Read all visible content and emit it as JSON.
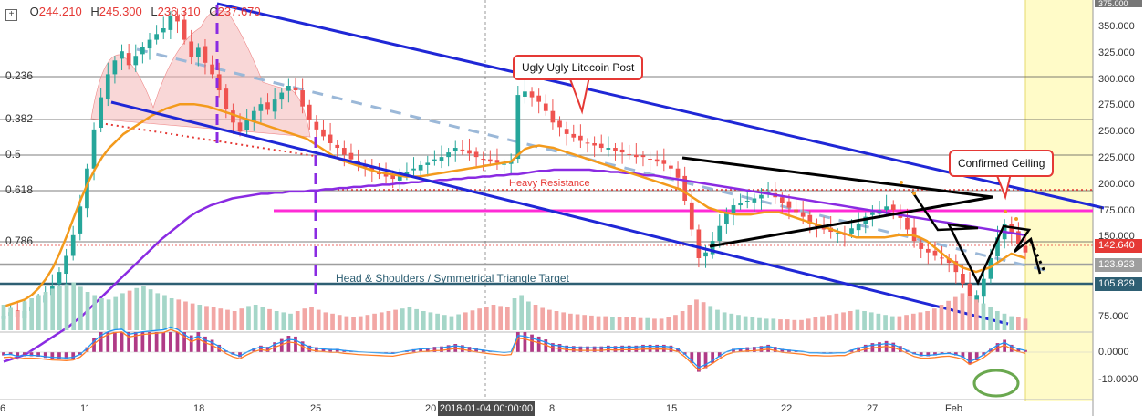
{
  "ohlc": {
    "symbol_icon": "plus-box-icon",
    "o_key": "O",
    "o": "244.210",
    "h_key": "H",
    "h": "245.300",
    "l_key": "L",
    "l": "236.310",
    "c_key": "C",
    "c": "237.670"
  },
  "fib_levels": [
    "0.236",
    "0.382",
    "0.5",
    "0.618",
    "0.786"
  ],
  "price_axis": [
    "350.000",
    "325.000",
    "300.000",
    "275.000",
    "250.000",
    "225.000",
    "200.000",
    "175.000",
    "150.000"
  ],
  "price_axis_top": "375.000",
  "price_tags": {
    "red": "142.640",
    "gray": "123.923",
    "teal": "105.829"
  },
  "volume_axis": "75.000",
  "macd_axis": [
    "0.0000",
    "-10.0000"
  ],
  "date_labels": [
    "6",
    "11",
    "18",
    "25",
    "20",
    "8",
    "15",
    "22",
    "27",
    "Feb"
  ],
  "crosshair_date": "2018-01-04 00:00:00",
  "annotations": {
    "callout_post": "Ugly Ugly Litecoin Post",
    "callout_ceiling": "Confirmed Ceiling",
    "heavy_resistance": "Heavy Resistance",
    "target": "Head & Shoulders / Symmetrical Triangle Target"
  },
  "colors": {
    "channel": "#1f27d6",
    "ema_orange": "#f39a1c",
    "ma_purple": "#8a2be2",
    "magenta": "#ff2bd6",
    "up": "#26a69a",
    "down": "#ef5350",
    "target_line": "#2e5f73",
    "gray_line": "#9e9e9e",
    "highlight": "#fffbc8"
  },
  "chart_data": {
    "type": "candlestick",
    "y_axis_range": [
      60,
      375
    ],
    "closes": [
      100,
      103,
      99,
      104,
      108,
      113,
      118,
      126,
      138,
      152,
      170,
      195,
      228,
      262,
      290,
      310,
      322,
      330,
      318,
      326,
      334,
      340,
      345,
      350,
      361,
      356,
      340,
      325,
      333,
      320,
      310,
      296,
      280,
      268,
      260,
      270,
      278,
      284,
      279,
      288,
      294,
      300,
      296,
      282,
      270,
      262,
      256,
      250,
      246,
      240,
      236,
      232,
      229,
      226,
      223,
      221,
      219,
      222,
      225,
      228,
      231,
      233,
      236,
      238,
      242,
      246,
      244,
      241,
      238,
      236,
      234,
      233,
      232,
      235,
      292,
      295,
      290,
      286,
      278,
      268,
      264,
      258,
      255,
      252,
      250,
      248,
      246,
      246,
      243,
      242,
      240,
      238,
      238,
      236,
      234,
      232,
      228,
      220,
      200,
      175,
      150,
      155,
      165,
      178,
      190,
      196,
      198,
      200,
      202,
      205,
      208,
      203,
      198,
      194,
      190,
      186,
      180,
      178,
      175,
      173,
      172,
      170,
      176,
      180,
      186,
      190,
      192,
      195,
      192,
      185,
      175,
      165,
      158,
      155,
      152,
      150,
      146,
      138,
      128,
      110,
      118,
      132,
      150,
      168,
      180,
      172,
      162,
      155
    ],
    "volume": [
      40,
      35,
      30,
      45,
      50,
      55,
      60,
      65,
      70,
      72,
      75,
      68,
      60,
      55,
      50,
      48,
      52,
      58,
      62,
      66,
      70,
      64,
      58,
      55,
      50,
      48,
      45,
      42,
      40,
      38,
      36,
      34,
      32,
      30,
      34,
      38,
      40,
      36,
      33,
      30,
      28,
      26,
      30,
      34,
      36,
      32,
      28,
      26,
      24,
      22,
      20,
      22,
      24,
      26,
      28,
      30,
      32,
      34,
      36,
      33,
      30,
      28,
      26,
      24,
      22,
      25,
      28,
      31,
      34,
      37,
      40,
      38,
      36,
      50,
      55,
      45,
      40,
      35,
      32,
      30,
      28,
      26,
      25,
      24,
      23,
      22,
      22,
      21,
      21,
      20,
      20,
      19,
      19,
      18,
      18,
      20,
      24,
      30,
      40,
      48,
      44,
      38,
      32,
      28,
      26,
      24,
      22,
      20,
      19,
      18,
      18,
      17,
      17,
      16,
      16,
      18,
      20,
      22,
      24,
      26,
      28,
      30,
      32,
      30,
      28,
      26,
      24,
      22,
      22,
      24,
      26,
      28,
      30,
      34,
      40,
      46,
      52,
      58,
      54,
      48,
      42,
      36,
      30,
      26,
      22,
      20,
      18
    ],
    "ema_orange": [
      108,
      110,
      112,
      114,
      118,
      124,
      132,
      142,
      155,
      170,
      186,
      202,
      216,
      228,
      238,
      246,
      252,
      258,
      262,
      266,
      270,
      274,
      277,
      280,
      282,
      284,
      284,
      284,
      283,
      282,
      280,
      278,
      276,
      274,
      272,
      270,
      268,
      266,
      264,
      262,
      260,
      258,
      256,
      254,
      250,
      246,
      242,
      238,
      235,
      233,
      231,
      229,
      227,
      225,
      224,
      223,
      222,
      221,
      221,
      221,
      222,
      223,
      224,
      225,
      226,
      227,
      228,
      229,
      230,
      231,
      232,
      233,
      234,
      240,
      245,
      247,
      248,
      247,
      246,
      244,
      242,
      240,
      238,
      236,
      234,
      232,
      230,
      228,
      226,
      224,
      222,
      220,
      218,
      216,
      214,
      212,
      210,
      206,
      202,
      198,
      194,
      192,
      190,
      189,
      188,
      188,
      188,
      189,
      190,
      190,
      190,
      188,
      186,
      184,
      182,
      180,
      178,
      176,
      174,
      172,
      170,
      168,
      168,
      168,
      168,
      168,
      169,
      170,
      170,
      170,
      168,
      165,
      160,
      155,
      150,
      146,
      142,
      140,
      138,
      140,
      142,
      146,
      150,
      154,
      152,
      150
    ],
    "ma_purple": [
      60,
      62,
      64,
      66,
      70,
      74,
      78,
      82,
      86,
      90,
      95,
      100,
      106,
      112,
      118,
      124,
      130,
      136,
      142,
      148,
      154,
      160,
      166,
      171,
      176,
      181,
      186,
      190,
      193,
      196,
      198,
      200,
      202,
      203,
      204,
      205,
      206,
      206,
      207,
      207,
      208,
      208,
      208,
      209,
      209,
      210,
      210,
      211,
      211,
      212,
      212,
      213,
      213,
      214,
      214,
      215,
      215,
      216,
      216,
      217,
      217,
      218,
      218,
      219,
      219,
      220,
      220,
      221,
      221,
      222,
      222,
      223,
      223,
      224,
      225,
      226,
      226,
      227,
      227,
      227,
      227,
      227,
      227,
      226,
      226,
      225,
      225,
      224,
      224,
      223,
      222,
      222,
      221,
      220,
      219,
      218,
      217,
      216,
      215,
      214,
      213,
      212,
      211,
      210,
      209,
      208,
      207,
      206,
      205,
      204,
      203,
      202,
      201,
      200,
      199,
      198,
      197,
      196,
      195,
      194,
      193,
      192,
      191,
      190,
      189,
      188,
      187,
      186,
      185,
      184,
      183,
      182,
      181,
      180,
      179,
      178,
      177,
      176,
      175,
      174,
      173,
      172,
      171,
      170
    ]
  }
}
